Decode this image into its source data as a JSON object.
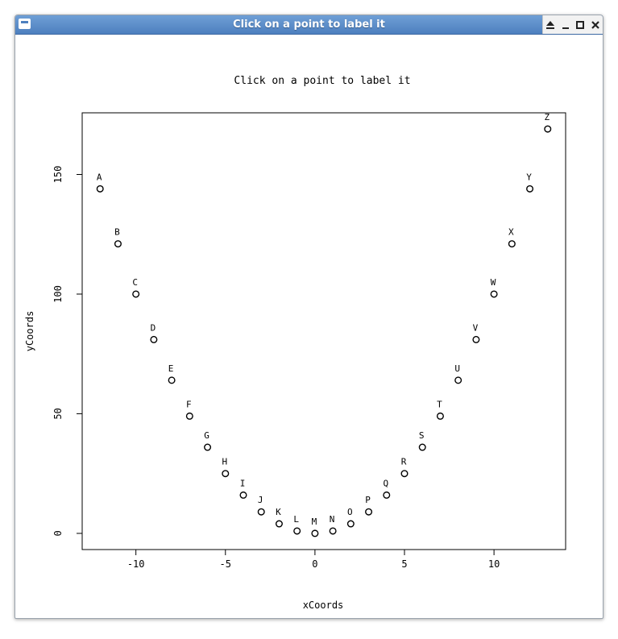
{
  "window": {
    "title": "Click on a point to label it"
  },
  "controls": {
    "eject_icon": "eject-icon",
    "minimize_icon": "minimize-icon",
    "maximize_icon": "maximize-icon",
    "close_icon": "close-icon"
  },
  "chart_data": {
    "type": "scatter",
    "title": "Click on a point to label it",
    "xlabel": "xCoords",
    "ylabel": "yCoords",
    "xlim": [
      -13,
      14
    ],
    "ylim": [
      -6.76,
      175.76
    ],
    "x_ticks": [
      -10,
      -5,
      0,
      5,
      10
    ],
    "y_ticks": [
      0,
      50,
      100,
      150
    ],
    "x_tick_labels": [
      "-10",
      "-5",
      "0",
      "5",
      "10"
    ],
    "y_tick_labels": [
      "0",
      "50",
      "100",
      "150"
    ],
    "grid": false,
    "points": [
      {
        "x": -12,
        "y": 144,
        "label": "A"
      },
      {
        "x": -11,
        "y": 121,
        "label": "B"
      },
      {
        "x": -10,
        "y": 100,
        "label": "C"
      },
      {
        "x": -9,
        "y": 81,
        "label": "D"
      },
      {
        "x": -8,
        "y": 64,
        "label": "E"
      },
      {
        "x": -7,
        "y": 49,
        "label": "F"
      },
      {
        "x": -6,
        "y": 36,
        "label": "G"
      },
      {
        "x": -5,
        "y": 25,
        "label": "H"
      },
      {
        "x": -4,
        "y": 16,
        "label": "I"
      },
      {
        "x": -3,
        "y": 9,
        "label": "J"
      },
      {
        "x": -2,
        "y": 4,
        "label": "K"
      },
      {
        "x": -1,
        "y": 1,
        "label": "L"
      },
      {
        "x": 0,
        "y": 0,
        "label": "M"
      },
      {
        "x": 1,
        "y": 1,
        "label": "N"
      },
      {
        "x": 2,
        "y": 4,
        "label": "O"
      },
      {
        "x": 3,
        "y": 9,
        "label": "P"
      },
      {
        "x": 4,
        "y": 16,
        "label": "Q"
      },
      {
        "x": 5,
        "y": 25,
        "label": "R"
      },
      {
        "x": 6,
        "y": 36,
        "label": "S"
      },
      {
        "x": 7,
        "y": 49,
        "label": "T"
      },
      {
        "x": 8,
        "y": 64,
        "label": "U"
      },
      {
        "x": 9,
        "y": 81,
        "label": "V"
      },
      {
        "x": 10,
        "y": 100,
        "label": "W"
      },
      {
        "x": 11,
        "y": 121,
        "label": "X"
      },
      {
        "x": 12,
        "y": 144,
        "label": "Y"
      },
      {
        "x": 13,
        "y": 169,
        "label": "Z"
      }
    ]
  }
}
